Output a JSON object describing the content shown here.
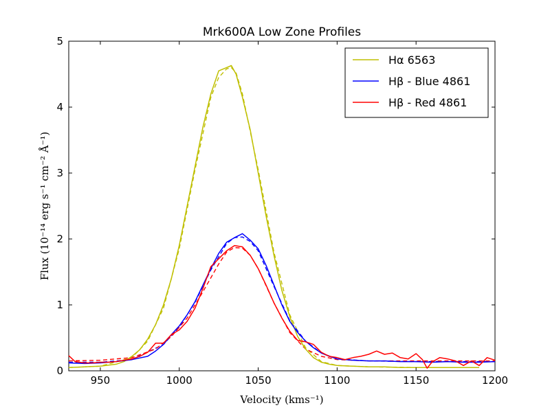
{
  "chart_data": {
    "type": "line",
    "title": "Mrk600A Low Zone Profiles",
    "xlabel": "Velocity (kms⁻¹)",
    "ylabel": "Flux (10⁻¹⁴ erg s⁻¹ cm⁻² Å⁻¹)",
    "xlim": [
      930,
      1200
    ],
    "ylim": [
      0,
      5
    ],
    "xticks": [
      950,
      1000,
      1050,
      1100,
      1150,
      1200
    ],
    "yticks": [
      0,
      1,
      2,
      3,
      4,
      5
    ],
    "grid": false,
    "legend_position": "top-right",
    "series": [
      {
        "name": "Hα 6563",
        "color": "#bfbf00",
        "x": [
          930,
          940,
          950,
          960,
          965,
          970,
          975,
          980,
          985,
          990,
          995,
          1000,
          1005,
          1010,
          1015,
          1020,
          1025,
          1030,
          1033,
          1036,
          1040,
          1045,
          1050,
          1055,
          1060,
          1065,
          1070,
          1075,
          1080,
          1085,
          1090,
          1095,
          1100,
          1110,
          1120,
          1130,
          1140,
          1150,
          1160,
          1170,
          1180,
          1190
        ],
        "y": [
          0.05,
          0.06,
          0.07,
          0.1,
          0.14,
          0.22,
          0.32,
          0.48,
          0.7,
          1.0,
          1.4,
          1.9,
          2.5,
          3.1,
          3.7,
          4.2,
          4.55,
          4.6,
          4.63,
          4.5,
          4.15,
          3.65,
          3.0,
          2.35,
          1.75,
          1.22,
          0.82,
          0.52,
          0.33,
          0.2,
          0.13,
          0.1,
          0.08,
          0.07,
          0.06,
          0.06,
          0.05,
          0.05,
          0.05,
          0.05,
          0.05,
          0.05
        ]
      },
      {
        "name": "Hβ - Blue 4861",
        "color": "#0000ff",
        "x": [
          930,
          940,
          950,
          960,
          970,
          980,
          985,
          990,
          995,
          1000,
          1005,
          1010,
          1015,
          1020,
          1025,
          1030,
          1035,
          1040,
          1045,
          1050,
          1055,
          1060,
          1065,
          1070,
          1075,
          1080,
          1085,
          1090,
          1095,
          1100,
          1110,
          1120,
          1130,
          1140,
          1150,
          1160,
          1170,
          1180,
          1190,
          1200
        ],
        "y": [
          0.12,
          0.11,
          0.12,
          0.14,
          0.17,
          0.22,
          0.3,
          0.4,
          0.55,
          0.68,
          0.85,
          1.05,
          1.3,
          1.55,
          1.78,
          1.95,
          2.02,
          2.08,
          1.98,
          1.85,
          1.6,
          1.3,
          1.0,
          0.75,
          0.58,
          0.45,
          0.35,
          0.27,
          0.22,
          0.18,
          0.16,
          0.15,
          0.15,
          0.14,
          0.14,
          0.13,
          0.14,
          0.13,
          0.13,
          0.14
        ]
      },
      {
        "name": "Hβ - Red 4861",
        "color": "#ff0000",
        "x": [
          930,
          934,
          940,
          945,
          950,
          955,
          960,
          965,
          970,
          975,
          980,
          985,
          990,
          995,
          1000,
          1005,
          1010,
          1015,
          1020,
          1025,
          1030,
          1035,
          1040,
          1045,
          1050,
          1055,
          1060,
          1065,
          1070,
          1075,
          1080,
          1085,
          1090,
          1095,
          1100,
          1105,
          1110,
          1115,
          1120,
          1125,
          1130,
          1135,
          1140,
          1145,
          1150,
          1154,
          1157,
          1160,
          1165,
          1170,
          1175,
          1180,
          1185,
          1190,
          1195,
          1200
        ],
        "y": [
          0.23,
          0.14,
          0.12,
          0.12,
          0.13,
          0.13,
          0.14,
          0.16,
          0.18,
          0.22,
          0.28,
          0.42,
          0.42,
          0.55,
          0.62,
          0.75,
          0.95,
          1.25,
          1.58,
          1.7,
          1.82,
          1.9,
          1.88,
          1.75,
          1.55,
          1.3,
          1.03,
          0.8,
          0.6,
          0.46,
          0.44,
          0.4,
          0.28,
          0.22,
          0.2,
          0.17,
          0.2,
          0.22,
          0.25,
          0.3,
          0.25,
          0.27,
          0.2,
          0.18,
          0.26,
          0.17,
          0.04,
          0.13,
          0.2,
          0.18,
          0.15,
          0.08,
          0.15,
          0.08,
          0.2,
          0.16
        ]
      }
    ],
    "fits": [
      {
        "series": "Hα 6563",
        "style": "dashed",
        "color": "#bfbf00",
        "x": [
          930,
          950,
          970,
          980,
          990,
          1000,
          1010,
          1020,
          1025,
          1030,
          1033,
          1036,
          1040,
          1050,
          1060,
          1070,
          1080,
          1090,
          1100,
          1120,
          1150,
          1190
        ],
        "y": [
          0.05,
          0.07,
          0.2,
          0.45,
          0.95,
          1.85,
          3.05,
          4.15,
          4.45,
          4.58,
          4.6,
          4.52,
          4.2,
          3.05,
          1.8,
          0.85,
          0.35,
          0.14,
          0.08,
          0.06,
          0.05,
          0.05
        ]
      },
      {
        "series": "Hβ - Blue 4861",
        "style": "dashed",
        "color": "#0000ff",
        "x": [
          930,
          950,
          970,
          990,
          1000,
          1010,
          1020,
          1030,
          1035,
          1040,
          1045,
          1050,
          1060,
          1070,
          1080,
          1090,
          1100,
          1120,
          1150,
          1200
        ],
        "y": [
          0.13,
          0.13,
          0.17,
          0.4,
          0.66,
          1.04,
          1.53,
          1.93,
          2.02,
          2.03,
          1.96,
          1.82,
          1.28,
          0.76,
          0.45,
          0.27,
          0.18,
          0.15,
          0.14,
          0.14
        ]
      },
      {
        "series": "Hβ - Red 4861",
        "style": "dashed",
        "color": "#ff0000",
        "x": [
          930,
          950,
          970,
          985,
          995,
          1005,
          1015,
          1025,
          1030,
          1035,
          1040,
          1045,
          1050,
          1060,
          1070,
          1080,
          1090,
          1100,
          1120,
          1150,
          1200
        ],
        "y": [
          0.15,
          0.16,
          0.2,
          0.33,
          0.52,
          0.8,
          1.2,
          1.62,
          1.8,
          1.87,
          1.86,
          1.75,
          1.55,
          1.03,
          0.58,
          0.33,
          0.22,
          0.17,
          0.15,
          0.15,
          0.15
        ]
      }
    ]
  }
}
